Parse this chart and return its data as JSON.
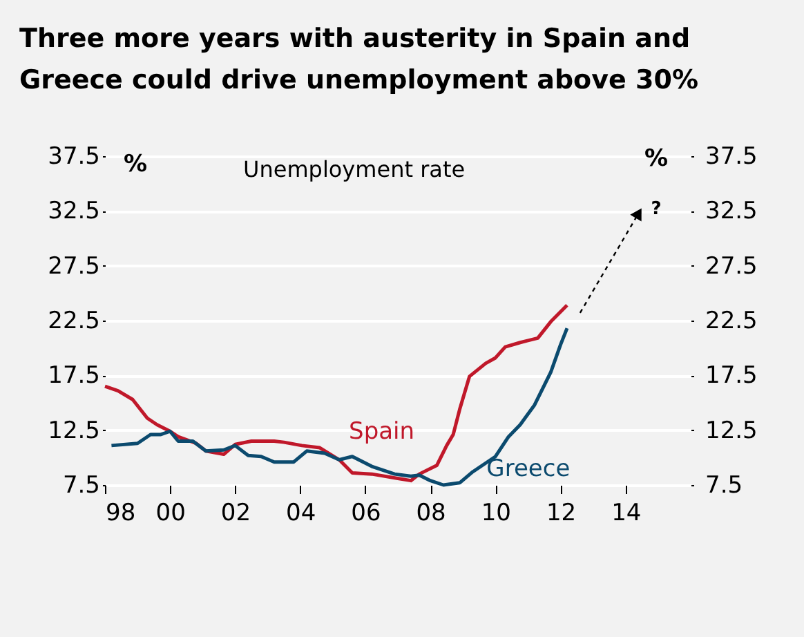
{
  "chart_data": {
    "type": "line",
    "title": "Three more years with austerity in Spain and Greece could drive unemployment above 30%",
    "ylabel": "%",
    "y2label": "%",
    "annotations": [
      "Unemployment rate",
      "?"
    ],
    "xlim": [
      1998,
      2016
    ],
    "ylim": [
      7.5,
      37.5
    ],
    "y2lim": [
      7.5,
      37.5
    ],
    "xticks": [
      {
        "value": 1998,
        "label": "98"
      },
      {
        "value": 2000,
        "label": "00"
      },
      {
        "value": 2002,
        "label": "02"
      },
      {
        "value": 2004,
        "label": "04"
      },
      {
        "value": 2006,
        "label": "06"
      },
      {
        "value": 2008,
        "label": "08"
      },
      {
        "value": 2010,
        "label": "10"
      },
      {
        "value": 2012,
        "label": "12"
      },
      {
        "value": 2014,
        "label": "14"
      }
    ],
    "yticks": [
      7.5,
      12.5,
      17.5,
      22.5,
      27.5,
      32.5,
      37.5
    ],
    "y2ticks": [
      7.5,
      12.5,
      17.5,
      22.5,
      27.5,
      32.5,
      37.5
    ],
    "grid": "y",
    "line_style": "solid",
    "series": [
      {
        "name": "Spain",
        "color": "#c0182a",
        "x": [
          1998.0,
          1998.4,
          1998.85,
          1999.3,
          1999.6,
          2000.0,
          2000.25,
          2000.8,
          2001.1,
          2001.65,
          2002.0,
          2002.5,
          2003.2,
          2003.5,
          2004.05,
          2004.6,
          2005.2,
          2005.6,
          2006.2,
          2007.0,
          2007.4,
          2007.66,
          2008.2,
          2008.5,
          2008.7,
          2008.9,
          2009.2,
          2009.7,
          2010.0,
          2010.3,
          2010.76,
          2011.3,
          2011.7,
          2012.2
        ],
        "values": [
          16.5,
          16.1,
          15.3,
          13.6,
          13.0,
          12.4,
          11.9,
          11.3,
          10.6,
          10.3,
          11.2,
          11.5,
          11.5,
          11.4,
          11.1,
          10.9,
          9.8,
          8.6,
          8.5,
          8.1,
          7.9,
          8.5,
          9.3,
          11.1,
          12.1,
          14.4,
          17.4,
          18.6,
          19.1,
          20.1,
          20.5,
          20.9,
          22.4,
          23.9
        ]
      },
      {
        "name": "Greece",
        "color": "#0b4a6e",
        "x": [
          1998.2,
          1999.0,
          1999.4,
          1999.7,
          2000.0,
          2000.25,
          2000.7,
          2001.1,
          2001.65,
          2002.0,
          2002.4,
          2002.8,
          2003.2,
          2003.8,
          2004.2,
          2004.75,
          2005.2,
          2005.6,
          2006.2,
          2006.9,
          2007.4,
          2007.66,
          2008.0,
          2008.4,
          2008.9,
          2009.3,
          2010.0,
          2010.4,
          2010.76,
          2011.2,
          2011.7,
          2012.0,
          2012.2
        ],
        "values": [
          11.1,
          11.3,
          12.1,
          12.1,
          12.4,
          11.5,
          11.5,
          10.6,
          10.7,
          11.1,
          10.2,
          10.1,
          9.6,
          9.6,
          10.6,
          10.4,
          9.8,
          10.1,
          9.2,
          8.5,
          8.3,
          8.4,
          7.9,
          7.5,
          7.7,
          8.7,
          10.1,
          11.9,
          13.0,
          14.8,
          17.8,
          20.3,
          21.8
        ]
      },
      {
        "color": "#000000",
        "line_style": "dashed",
        "x": [
          2012.6,
          2014.4
        ],
        "values": [
          23.2,
          32.3
        ]
      }
    ]
  }
}
